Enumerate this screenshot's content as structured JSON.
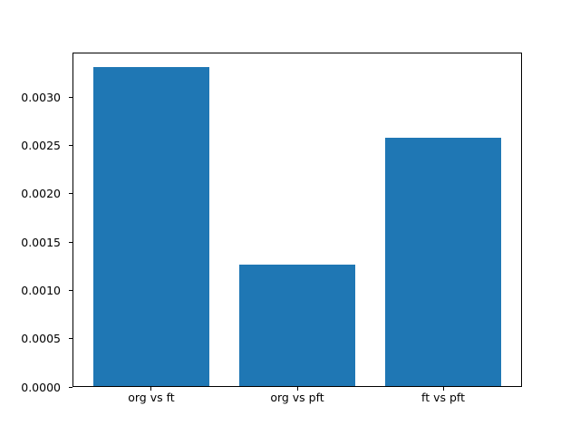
{
  "figure": {
    "background": "#ffffff"
  },
  "chart_data": {
    "type": "bar",
    "categories": [
      "org vs ft",
      "org vs pft",
      "ft vs pft"
    ],
    "values": [
      0.00331,
      0.00127,
      0.00258
    ],
    "title": "",
    "xlabel": "",
    "ylabel": "",
    "ylim": [
      0,
      0.00346
    ],
    "yticks": [
      0.0,
      0.0005,
      0.001,
      0.0015,
      0.002,
      0.0025,
      0.003
    ],
    "ytick_labels": [
      "0.0000",
      "0.0005",
      "0.0010",
      "0.0015",
      "0.0020",
      "0.0025",
      "0.0030"
    ],
    "bar_width_fraction": 0.8,
    "bar_color": "#1f77b4",
    "axes_color": "#000000",
    "text_color": "#000000",
    "grid": false,
    "legend": null
  }
}
